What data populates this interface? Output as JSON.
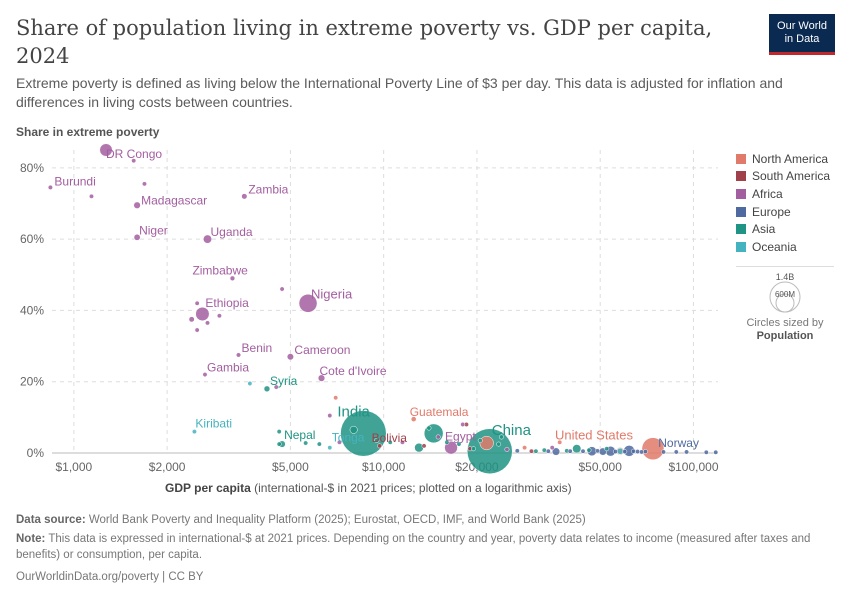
{
  "header": {
    "title": "Share of population living in extreme poverty vs. GDP per capita, 2024",
    "subtitle": "Extreme poverty is defined as living below the International Poverty Line of $3 per day. This data is adjusted for inflation and differences in living costs between countries.",
    "logo_line1": "Our World",
    "logo_line2": "in Data"
  },
  "axes": {
    "y_title": "Share in extreme poverty",
    "x_title_bold": "GDP per capita",
    "x_title_rest": " (international-$ in 2021 prices; plotted on a logarithmic axis)"
  },
  "legend": {
    "regions": [
      {
        "name": "North America",
        "color": "#e07a6a"
      },
      {
        "name": "South America",
        "color": "#a0404b"
      },
      {
        "name": "Africa",
        "color": "#a35ea0"
      },
      {
        "name": "Europe",
        "color": "#4f6aa0"
      },
      {
        "name": "Asia",
        "color": "#1f9384"
      },
      {
        "name": "Oceania",
        "color": "#45b3bf"
      }
    ],
    "size_big": "1.4B",
    "size_small": "600M",
    "size_caption": "Circles sized by",
    "size_caption_bold": "Population"
  },
  "footer": {
    "source_label": "Data source:",
    "source_text": " World Bank Poverty and Inequality Platform (2025); Eurostat, OECD, IMF, and World Bank (2025)",
    "note_label": "Note:",
    "note_text": " This data is expressed in international-$ at 2021 prices. Depending on the country and year, poverty data relates to income (measured after taxes and benefits) or consumption, per capita.",
    "credit": "OurWorldinData.org/poverty | CC BY"
  },
  "chart_data": {
    "type": "scatter",
    "x_scale": "log",
    "xlim": [
      850,
      120000
    ],
    "ylim": [
      0,
      85
    ],
    "x_ticks": [
      {
        "v": 1000,
        "label": "$1,000"
      },
      {
        "v": 2000,
        "label": "$2,000"
      },
      {
        "v": 5000,
        "label": "$5,000"
      },
      {
        "v": 10000,
        "label": "$10,000"
      },
      {
        "v": 20000,
        "label": "$20,000"
      },
      {
        "v": 50000,
        "label": "$50,000"
      },
      {
        "v": 100000,
        "label": "$100,000"
      }
    ],
    "y_ticks": [
      {
        "v": 0,
        "label": "0%"
      },
      {
        "v": 20,
        "label": "20%"
      },
      {
        "v": 40,
        "label": "40%"
      },
      {
        "v": 60,
        "label": "60%"
      },
      {
        "v": 80,
        "label": "80%"
      }
    ],
    "grid": true,
    "legend_position": "right",
    "points": [
      {
        "name": "DR Congo",
        "x": 1270,
        "y": 85,
        "r": "Africa",
        "pop": 110,
        "label": true
      },
      {
        "name": "Burundi",
        "x": 840,
        "y": 74.5,
        "r": "Africa",
        "pop": 14,
        "label": true
      },
      {
        "name": "Madagascar",
        "x": 1600,
        "y": 69.5,
        "r": "Africa",
        "pop": 31,
        "label": true
      },
      {
        "name": "Zambia",
        "x": 3550,
        "y": 72,
        "r": "Africa",
        "pop": 21,
        "label": true
      },
      {
        "name": "Niger",
        "x": 1600,
        "y": 60.5,
        "r": "Africa",
        "pop": 27,
        "label": true
      },
      {
        "name": "Uganda",
        "x": 2700,
        "y": 60,
        "r": "Africa",
        "pop": 49,
        "label": true
      },
      {
        "name": "Zimbabwe",
        "x": 3250,
        "y": 49,
        "r": "Africa",
        "pop": 16,
        "label": true
      },
      {
        "name": "Nigeria",
        "x": 5700,
        "y": 42,
        "r": "Africa",
        "pop": 227,
        "label": true
      },
      {
        "name": "Ethiopia",
        "x": 2600,
        "y": 39,
        "r": "Africa",
        "pop": 128,
        "label": true
      },
      {
        "name": "Benin",
        "x": 3400,
        "y": 27.5,
        "r": "Africa",
        "pop": 14,
        "label": true
      },
      {
        "name": "Cameroon",
        "x": 5000,
        "y": 27,
        "r": "Africa",
        "pop": 29,
        "label": true
      },
      {
        "name": "Gambia",
        "x": 2650,
        "y": 22,
        "r": "Africa",
        "pop": 3,
        "label": true
      },
      {
        "name": "Cote d'Ivoire",
        "x": 6300,
        "y": 21,
        "r": "Africa",
        "pop": 31,
        "label": true
      },
      {
        "name": "Syria",
        "x": 4200,
        "y": 18,
        "r": "Asia",
        "pop": 24,
        "label": true
      },
      {
        "name": "Kiribati",
        "x": 2450,
        "y": 6,
        "r": "Oceania",
        "pop": 1,
        "label": true
      },
      {
        "name": "India",
        "x": 8600,
        "y": 5.5,
        "r": "Asia",
        "pop": 1450,
        "label": true
      },
      {
        "name": "Nepal",
        "x": 4700,
        "y": 2.5,
        "r": "Asia",
        "pop": 30,
        "label": true
      },
      {
        "name": "Tonga",
        "x": 6700,
        "y": 1.5,
        "r": "Oceania",
        "pop": 1,
        "label": true
      },
      {
        "name": "Bolivia",
        "x": 9700,
        "y": 2,
        "r": "South America",
        "pop": 12,
        "label": true
      },
      {
        "name": "Guatemala",
        "x": 12500,
        "y": 9.5,
        "r": "North America",
        "pop": 18,
        "label": true
      },
      {
        "name": "Egypt",
        "x": 16500,
        "y": 1.5,
        "r": "Africa",
        "pop": 116,
        "label": true
      },
      {
        "name": "China",
        "x": 22000,
        "y": 0.5,
        "r": "Asia",
        "pop": 1410,
        "label": true
      },
      {
        "name": "United States",
        "x": 74000,
        "y": 1.2,
        "r": "North America",
        "pop": 340,
        "label": true
      },
      {
        "name": "Norway",
        "x": 88000,
        "y": 0.3,
        "r": "Europe",
        "pop": 5,
        "label": true
      },
      {
        "name": "",
        "x": 1690,
        "y": 75.5,
        "r": "Africa",
        "pop": 2,
        "label": false
      },
      {
        "name": "",
        "x": 1560,
        "y": 82,
        "r": "Africa",
        "pop": 2,
        "label": false
      },
      {
        "name": "",
        "x": 1140,
        "y": 72,
        "r": "Africa",
        "pop": 2,
        "label": false
      },
      {
        "name": "",
        "x": 4700,
        "y": 46,
        "r": "Africa",
        "pop": 2,
        "label": false
      },
      {
        "name": "",
        "x": 2950,
        "y": 38.5,
        "r": "Africa",
        "pop": 2,
        "label": false
      },
      {
        "name": "",
        "x": 2500,
        "y": 42,
        "r": "Africa",
        "pop": 3,
        "label": false
      },
      {
        "name": "",
        "x": 2400,
        "y": 37.5,
        "r": "Africa",
        "pop": 20,
        "label": false
      },
      {
        "name": "",
        "x": 2700,
        "y": 36.5,
        "r": "Africa",
        "pop": 3,
        "label": false
      },
      {
        "name": "",
        "x": 2500,
        "y": 34.5,
        "r": "Africa",
        "pop": 2,
        "label": false
      },
      {
        "name": "",
        "x": 4500,
        "y": 18.5,
        "r": "Africa",
        "pop": 2,
        "label": false
      },
      {
        "name": "",
        "x": 7000,
        "y": 15.5,
        "r": "North America",
        "pop": 2,
        "label": false
      },
      {
        "name": "",
        "x": 3700,
        "y": 19.5,
        "r": "Oceania",
        "pop": 2,
        "label": false
      },
      {
        "name": "",
        "x": 6700,
        "y": 10.5,
        "r": "Africa",
        "pop": 2,
        "label": false
      },
      {
        "name": "",
        "x": 4600,
        "y": 6,
        "r": "Asia",
        "pop": 2,
        "label": false
      },
      {
        "name": "",
        "x": 4600,
        "y": 2.5,
        "r": "Asia",
        "pop": 5,
        "label": false
      },
      {
        "name": "",
        "x": 5600,
        "y": 2.8,
        "r": "Asia",
        "pop": 2,
        "label": false
      },
      {
        "name": "",
        "x": 6200,
        "y": 2.5,
        "r": "Asia",
        "pop": 2,
        "label": false
      },
      {
        "name": "",
        "x": 7200,
        "y": 3,
        "r": "Africa",
        "pop": 2,
        "label": false
      },
      {
        "name": "",
        "x": 8000,
        "y": 6.5,
        "r": "Asia",
        "pop": 38,
        "label": false
      },
      {
        "name": "",
        "x": 9500,
        "y": 3.5,
        "r": "Asia",
        "pop": 2,
        "label": false
      },
      {
        "name": "",
        "x": 11500,
        "y": 3,
        "r": "Africa",
        "pop": 2,
        "label": false
      },
      {
        "name": "",
        "x": 10500,
        "y": 3,
        "r": "Asia",
        "pop": 5,
        "label": false
      },
      {
        "name": "",
        "x": 13500,
        "y": 2,
        "r": "South America",
        "pop": 2,
        "label": false
      },
      {
        "name": "",
        "x": 14500,
        "y": 5.5,
        "r": "Asia",
        "pop": 250,
        "label": false
      },
      {
        "name": "",
        "x": 15000,
        "y": 4.5,
        "r": "Africa",
        "pop": 2,
        "label": false
      },
      {
        "name": "",
        "x": 13000,
        "y": 1.5,
        "r": "Asia",
        "pop": 55,
        "label": false
      },
      {
        "name": "",
        "x": 14000,
        "y": 7,
        "r": "Asia",
        "pop": 2,
        "label": false
      },
      {
        "name": "",
        "x": 16000,
        "y": 3,
        "r": "Asia",
        "pop": 2,
        "label": false
      },
      {
        "name": "",
        "x": 17500,
        "y": 2.5,
        "r": "Asia",
        "pop": 2,
        "label": false
      },
      {
        "name": "",
        "x": 18000,
        "y": 8,
        "r": "Africa",
        "pop": 2,
        "label": false
      },
      {
        "name": "",
        "x": 18500,
        "y": 8,
        "r": "South America",
        "pop": 5,
        "label": false
      },
      {
        "name": "",
        "x": 19000,
        "y": 1.2,
        "r": "South America",
        "pop": 2,
        "label": false
      },
      {
        "name": "",
        "x": 20500,
        "y": 3.5,
        "r": "Asia",
        "pop": 2,
        "label": false
      },
      {
        "name": "",
        "x": 19500,
        "y": 1.2,
        "r": "Asia",
        "pop": 2,
        "label": false
      },
      {
        "name": "",
        "x": 21500,
        "y": 2.8,
        "r": "North America",
        "pop": 130,
        "label": false
      },
      {
        "name": "",
        "x": 23500,
        "y": 2.5,
        "r": "Asia",
        "pop": 2,
        "label": false
      },
      {
        "name": "",
        "x": 24000,
        "y": 4.5,
        "r": "Asia",
        "pop": 2,
        "label": false
      },
      {
        "name": "",
        "x": 25000,
        "y": 1,
        "r": "Africa",
        "pop": 2,
        "label": false
      },
      {
        "name": "",
        "x": 27000,
        "y": 0.6,
        "r": "Europe",
        "pop": 2,
        "label": false
      },
      {
        "name": "",
        "x": 28500,
        "y": 1.5,
        "r": "North America",
        "pop": 2,
        "label": false
      },
      {
        "name": "",
        "x": 30000,
        "y": 0.5,
        "r": "South America",
        "pop": 2,
        "label": false
      },
      {
        "name": "",
        "x": 31000,
        "y": 0.5,
        "r": "Asia",
        "pop": 2,
        "label": false
      },
      {
        "name": "",
        "x": 33000,
        "y": 0.8,
        "r": "Asia",
        "pop": 2,
        "label": false
      },
      {
        "name": "",
        "x": 34000,
        "y": 0.5,
        "r": "Europe",
        "pop": 2,
        "label": false
      },
      {
        "name": "",
        "x": 35000,
        "y": 1.5,
        "r": "Africa",
        "pop": 2,
        "label": false
      },
      {
        "name": "",
        "x": 36000,
        "y": 0.4,
        "r": "Europe",
        "pop": 40,
        "label": false
      },
      {
        "name": "",
        "x": 37000,
        "y": 3,
        "r": "North America",
        "pop": 2,
        "label": false
      },
      {
        "name": "",
        "x": 39000,
        "y": 0.6,
        "r": "Asia",
        "pop": 2,
        "label": false
      },
      {
        "name": "",
        "x": 40000,
        "y": 0.5,
        "r": "Europe",
        "pop": 2,
        "label": false
      },
      {
        "name": "",
        "x": 42000,
        "y": 1.2,
        "r": "Asia",
        "pop": 50,
        "label": false
      },
      {
        "name": "",
        "x": 44000,
        "y": 0.5,
        "r": "Europe",
        "pop": 2,
        "label": false
      },
      {
        "name": "",
        "x": 46000,
        "y": 0.8,
        "r": "Asia",
        "pop": 2,
        "label": false
      },
      {
        "name": "",
        "x": 47000,
        "y": 0.5,
        "r": "Europe",
        "pop": 59,
        "label": false
      },
      {
        "name": "",
        "x": 49000,
        "y": 0.6,
        "r": "Europe",
        "pop": 2,
        "label": false
      },
      {
        "name": "",
        "x": 51000,
        "y": 0.4,
        "r": "Europe",
        "pop": 38,
        "label": false
      },
      {
        "name": "",
        "x": 52500,
        "y": 1.2,
        "r": "Asia",
        "pop": 2,
        "label": false
      },
      {
        "name": "",
        "x": 54000,
        "y": 0.5,
        "r": "Europe",
        "pop": 68,
        "label": false
      },
      {
        "name": "",
        "x": 56000,
        "y": 0.4,
        "r": "Europe",
        "pop": 2,
        "label": false
      },
      {
        "name": "",
        "x": 58000,
        "y": 0.5,
        "r": "Oceania",
        "pop": 27,
        "label": false
      },
      {
        "name": "",
        "x": 60000,
        "y": 0.4,
        "r": "Europe",
        "pop": 2,
        "label": false
      },
      {
        "name": "",
        "x": 62000,
        "y": 0.6,
        "r": "Europe",
        "pop": 84,
        "label": false
      },
      {
        "name": "",
        "x": 64000,
        "y": 0.5,
        "r": "Europe",
        "pop": 2,
        "label": false
      },
      {
        "name": "",
        "x": 66000,
        "y": 0.4,
        "r": "Europe",
        "pop": 2,
        "label": false
      },
      {
        "name": "",
        "x": 68000,
        "y": 0.3,
        "r": "Europe",
        "pop": 2,
        "label": false
      },
      {
        "name": "",
        "x": 70000,
        "y": 0.4,
        "r": "Europe",
        "pop": 2,
        "label": false
      },
      {
        "name": "",
        "x": 80000,
        "y": 0.3,
        "r": "Europe",
        "pop": 2,
        "label": false
      },
      {
        "name": "",
        "x": 95000,
        "y": 0.3,
        "r": "Europe",
        "pop": 2,
        "label": false
      },
      {
        "name": "",
        "x": 110000,
        "y": 0.2,
        "r": "Europe",
        "pop": 2,
        "label": false
      },
      {
        "name": "",
        "x": 118000,
        "y": 0.2,
        "r": "Europe",
        "pop": 2,
        "label": false
      },
      {
        "name": "",
        "x": 58000,
        "y": 0.5,
        "r": "North America",
        "pop": 40,
        "label": false
      }
    ]
  }
}
